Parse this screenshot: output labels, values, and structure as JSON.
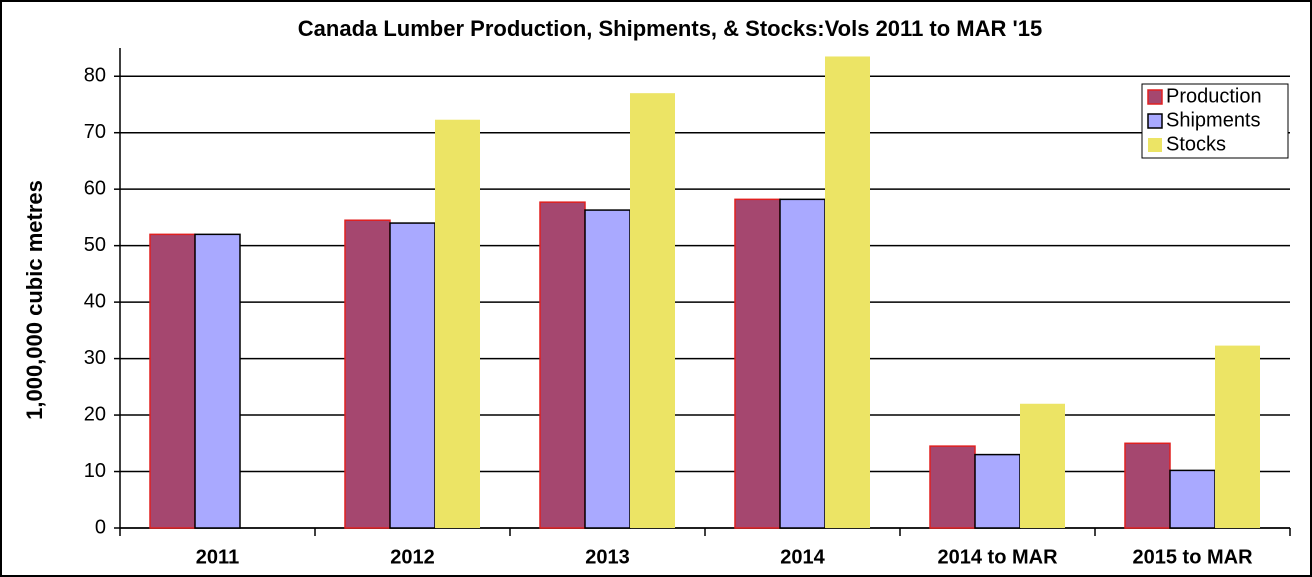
{
  "chart_data": {
    "type": "bar",
    "title": "Canada Lumber Production, Shipments, & Stocks:Vols 2011 to MAR '15",
    "y_label": "1,000,000 cubic metres",
    "categories": [
      "2011",
      "2012",
      "2013",
      "2014",
      "2014 to MAR",
      "2015 to MAR"
    ],
    "series": [
      {
        "name": "Production",
        "color": "#a5476f",
        "values": [
          52,
          54.5,
          57.7,
          58.2,
          14.5,
          15
        ]
      },
      {
        "name": "Shipments",
        "color": "#a9a9ff",
        "values": [
          52,
          54,
          56.3,
          58.2,
          13,
          10.2
        ]
      },
      {
        "name": "Stocks",
        "color": "#ece465",
        "values": [
          null,
          72.3,
          77,
          83.5,
          22,
          32.3
        ]
      }
    ],
    "ylim": [
      0,
      85
    ],
    "yticks": [
      0,
      10,
      20,
      30,
      40,
      50,
      60,
      70,
      80
    ],
    "grid": true,
    "legend": "top-right"
  }
}
